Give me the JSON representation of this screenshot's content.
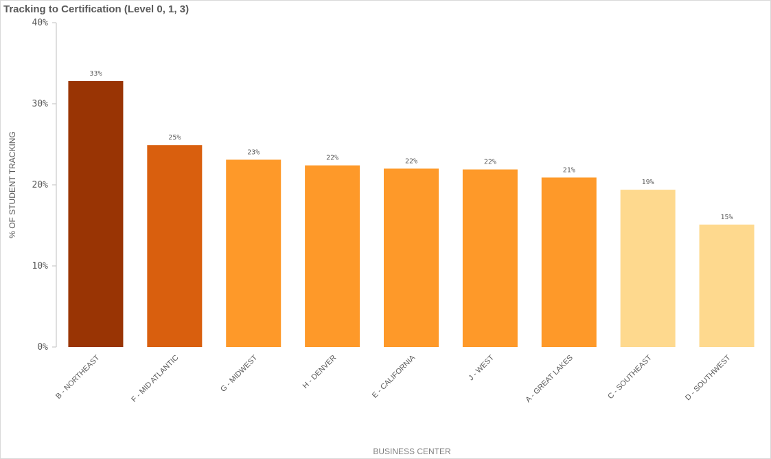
{
  "title": "Tracking to Certification (Level 0, 1, 3)",
  "chart_data": {
    "type": "bar",
    "title": "Tracking to Certification (Level 0, 1, 3)",
    "xlabel": "BUSINESS CENTER",
    "ylabel": "% OF STUDENT TRACKING",
    "ylim": [
      0,
      40
    ],
    "y_ticks": [
      "0%",
      "10%",
      "20%",
      "30%",
      "40%"
    ],
    "y_tick_values": [
      0,
      10,
      20,
      30,
      40
    ],
    "grid": false,
    "categories": [
      "B - NORTHEAST",
      "F - MID ATLANTIC",
      "G - MIDWEST",
      "H - DENVER",
      "E - CALIFORNIA",
      "J - WEST",
      "A - GREAT LAKES",
      "C - SOUTHEAST",
      "D - SOUTHWEST"
    ],
    "values": [
      32.8,
      24.9,
      23.1,
      22.4,
      22.0,
      21.9,
      20.9,
      19.4,
      15.1
    ],
    "data_labels": [
      "33%",
      "25%",
      "23%",
      "22%",
      "22%",
      "22%",
      "21%",
      "19%",
      "15%"
    ],
    "colors": [
      "#993404",
      "#d95f0e",
      "#fe9929",
      "#fe9929",
      "#fe9929",
      "#fe9929",
      "#fe9929",
      "#fed98e",
      "#fed98e"
    ]
  }
}
